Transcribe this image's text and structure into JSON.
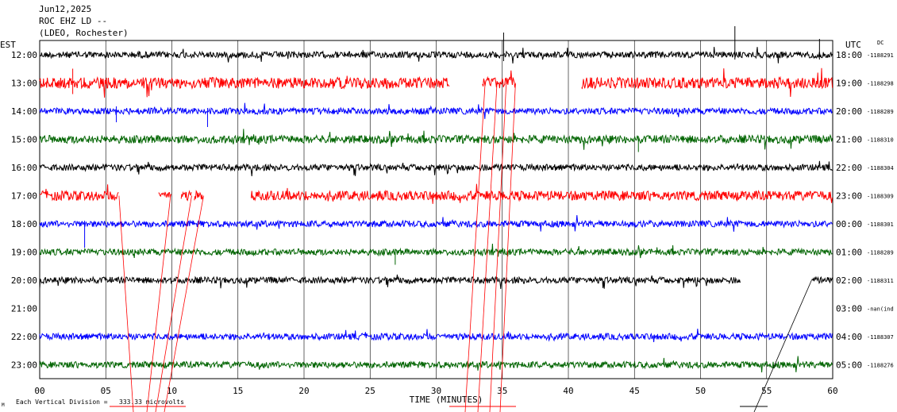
{
  "header": {
    "date": "Jun12,2025",
    "station": "ROC EHZ LD --",
    "network": "(LDEO, Rochester)"
  },
  "left_zone_label": "EST",
  "right_zone_label": "UTC",
  "dc_label": "DC",
  "footer": {
    "scale_prefix": "Each Vertical Division =",
    "scale_value": "333.33 microvolts",
    "marker": "M"
  },
  "chart_data": {
    "type": "line",
    "title": "",
    "xlabel": "TIME (MINUTES)",
    "ylabel": "",
    "xlim": [
      0,
      60
    ],
    "x_ticks": [
      "00",
      "05",
      "10",
      "15",
      "20",
      "25",
      "30",
      "35",
      "40",
      "45",
      "50",
      "55",
      "60"
    ],
    "grid": true,
    "line_colors": [
      "#000000",
      "#ff0000",
      "#0000ff",
      "#006400"
    ],
    "rows": [
      {
        "est": "12:00",
        "utc": "18:00",
        "dc": "-1188291",
        "segments": [
          [
            0,
            60
          ]
        ],
        "amp": 4
      },
      {
        "est": "13:00",
        "utc": "19:00",
        "dc": "-1188298",
        "segments": [
          [
            0,
            31
          ],
          [
            33.5,
            36
          ],
          [
            41,
            60
          ]
        ],
        "amp": 7
      },
      {
        "est": "14:00",
        "utc": "20:00",
        "dc": "-1188289",
        "segments": [
          [
            0,
            60
          ]
        ],
        "amp": 4
      },
      {
        "est": "15:00",
        "utc": "21:00",
        "dc": "-1188310",
        "segments": [
          [
            0,
            60
          ]
        ],
        "amp": 5
      },
      {
        "est": "16:00",
        "utc": "22:00",
        "dc": "-1188304",
        "segments": [
          [
            0,
            60
          ]
        ],
        "amp": 4
      },
      {
        "est": "17:00",
        "utc": "23:00",
        "dc": "-1188309",
        "segments": [
          [
            0,
            6
          ],
          [
            9,
            10
          ],
          [
            10.7,
            11.5
          ],
          [
            11.7,
            12.4
          ],
          [
            16,
            60
          ]
        ],
        "amp": 6
      },
      {
        "est": "18:00",
        "utc": "00:00",
        "dc": "-1188301",
        "segments": [
          [
            0,
            60
          ]
        ],
        "amp": 4
      },
      {
        "est": "19:00",
        "utc": "01:00",
        "dc": "-1188289",
        "segments": [
          [
            0,
            60
          ]
        ],
        "amp": 4
      },
      {
        "est": "20:00",
        "utc": "02:00",
        "dc": "-1188311",
        "segments": [
          [
            0,
            53
          ],
          [
            58.4,
            60
          ]
        ],
        "amp": 4
      },
      {
        "est": "21:00",
        "utc": "03:00",
        "dc": "-nan(ind",
        "segments": [],
        "amp": 0
      },
      {
        "est": "22:00",
        "utc": "04:00",
        "dc": "-1188307",
        "segments": [
          [
            0,
            60
          ]
        ],
        "amp": 4
      },
      {
        "est": "23:00",
        "utc": "05:00",
        "dc": "-1188276",
        "segments": [
          [
            0,
            60
          ]
        ],
        "amp": 4
      }
    ]
  }
}
